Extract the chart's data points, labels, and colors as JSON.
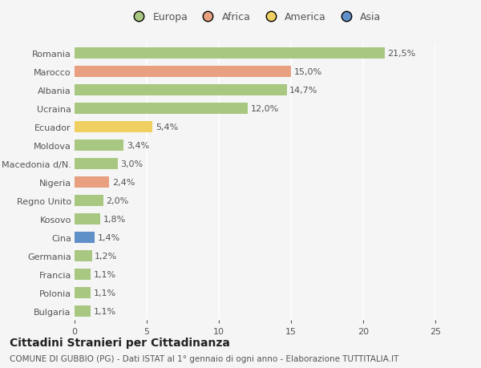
{
  "countries": [
    "Romania",
    "Marocco",
    "Albania",
    "Ucraina",
    "Ecuador",
    "Moldova",
    "Macedonia d/N.",
    "Nigeria",
    "Regno Unito",
    "Kosovo",
    "Cina",
    "Germania",
    "Francia",
    "Polonia",
    "Bulgaria"
  ],
  "values": [
    21.5,
    15.0,
    14.7,
    12.0,
    5.4,
    3.4,
    3.0,
    2.4,
    2.0,
    1.8,
    1.4,
    1.2,
    1.1,
    1.1,
    1.1
  ],
  "labels": [
    "21,5%",
    "15,0%",
    "14,7%",
    "12,0%",
    "5,4%",
    "3,4%",
    "3,0%",
    "2,4%",
    "2,0%",
    "1,8%",
    "1,4%",
    "1,2%",
    "1,1%",
    "1,1%",
    "1,1%"
  ],
  "continents": [
    "Europa",
    "Africa",
    "Europa",
    "Europa",
    "America",
    "Europa",
    "Europa",
    "Africa",
    "Europa",
    "Europa",
    "Asia",
    "Europa",
    "Europa",
    "Europa",
    "Europa"
  ],
  "continent_colors": {
    "Europa": "#a8c882",
    "Africa": "#e8a080",
    "America": "#f0d060",
    "Asia": "#6090c8"
  },
  "legend_order": [
    "Europa",
    "Africa",
    "America",
    "Asia"
  ],
  "legend_colors": [
    "#a8c882",
    "#e8a080",
    "#f0d060",
    "#6090c8"
  ],
  "xlim": [
    0,
    25
  ],
  "xticks": [
    0,
    5,
    10,
    15,
    20,
    25
  ],
  "title": "Cittadini Stranieri per Cittadinanza",
  "subtitle": "COMUNE DI GUBBIO (PG) - Dati ISTAT al 1° gennaio di ogni anno - Elaborazione TUTTITALIA.IT",
  "bg_color": "#f5f5f5",
  "plot_bg_color": "#f5f5f5",
  "bar_height": 0.6,
  "label_fontsize": 8,
  "tick_fontsize": 8,
  "title_fontsize": 10,
  "subtitle_fontsize": 7.5,
  "legend_fontsize": 9
}
